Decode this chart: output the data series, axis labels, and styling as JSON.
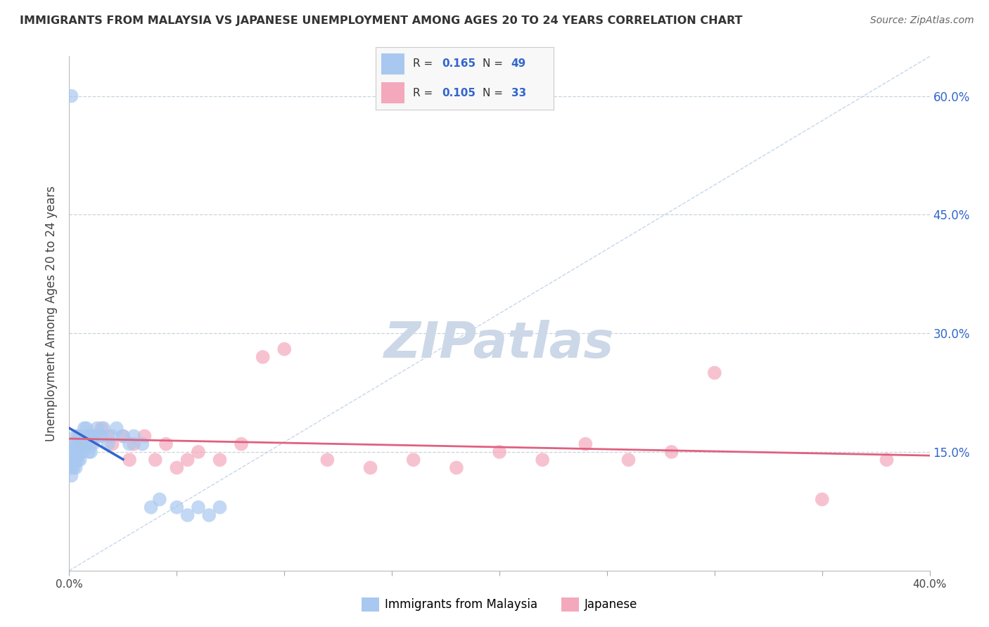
{
  "title": "IMMIGRANTS FROM MALAYSIA VS JAPANESE UNEMPLOYMENT AMONG AGES 20 TO 24 YEARS CORRELATION CHART",
  "source": "Source: ZipAtlas.com",
  "ylabel_left": "Unemployment Among Ages 20 to 24 years",
  "legend_label1": "Immigrants from Malaysia",
  "legend_label2": "Japanese",
  "R1": "0.165",
  "N1": "49",
  "R2": "0.105",
  "N2": "33",
  "xmin": 0.0,
  "xmax": 0.4,
  "ymin": 0.0,
  "ymax": 0.65,
  "right_yticks": [
    0.15,
    0.3,
    0.45,
    0.6
  ],
  "right_ytick_labels": [
    "15.0%",
    "30.0%",
    "45.0%",
    "60.0%"
  ],
  "color_blue": "#a8c8f0",
  "color_blue_line": "#3366cc",
  "color_pink": "#f4a8bc",
  "color_pink_line": "#e06080",
  "color_diag_line": "#b8cce4",
  "watermark_text": "ZIPatlas",
  "blue_scatter_x": [
    0.001,
    0.001,
    0.001,
    0.001,
    0.002,
    0.002,
    0.002,
    0.002,
    0.003,
    0.003,
    0.003,
    0.003,
    0.004,
    0.004,
    0.004,
    0.005,
    0.005,
    0.005,
    0.006,
    0.006,
    0.007,
    0.007,
    0.008,
    0.008,
    0.009,
    0.009,
    0.01,
    0.01,
    0.011,
    0.012,
    0.013,
    0.014,
    0.015,
    0.016,
    0.018,
    0.02,
    0.022,
    0.025,
    0.028,
    0.03,
    0.034,
    0.038,
    0.042,
    0.05,
    0.055,
    0.06,
    0.065,
    0.07,
    0.001
  ],
  "blue_scatter_y": [
    0.12,
    0.13,
    0.14,
    0.15,
    0.13,
    0.14,
    0.15,
    0.16,
    0.13,
    0.14,
    0.16,
    0.17,
    0.14,
    0.15,
    0.16,
    0.14,
    0.15,
    0.17,
    0.15,
    0.16,
    0.16,
    0.18,
    0.16,
    0.18,
    0.15,
    0.17,
    0.15,
    0.17,
    0.16,
    0.17,
    0.18,
    0.17,
    0.17,
    0.18,
    0.16,
    0.17,
    0.18,
    0.17,
    0.16,
    0.17,
    0.16,
    0.08,
    0.09,
    0.08,
    0.07,
    0.08,
    0.07,
    0.08,
    0.6
  ],
  "pink_scatter_x": [
    0.004,
    0.006,
    0.008,
    0.01,
    0.012,
    0.015,
    0.018,
    0.02,
    0.025,
    0.028,
    0.03,
    0.035,
    0.04,
    0.045,
    0.05,
    0.055,
    0.06,
    0.07,
    0.08,
    0.09,
    0.1,
    0.12,
    0.14,
    0.16,
    0.18,
    0.2,
    0.22,
    0.24,
    0.26,
    0.28,
    0.3,
    0.35,
    0.38
  ],
  "pink_scatter_y": [
    0.17,
    0.16,
    0.17,
    0.16,
    0.17,
    0.18,
    0.17,
    0.16,
    0.17,
    0.14,
    0.16,
    0.17,
    0.14,
    0.16,
    0.13,
    0.14,
    0.15,
    0.14,
    0.16,
    0.27,
    0.28,
    0.14,
    0.13,
    0.14,
    0.13,
    0.15,
    0.14,
    0.16,
    0.14,
    0.15,
    0.25,
    0.09,
    0.14
  ]
}
